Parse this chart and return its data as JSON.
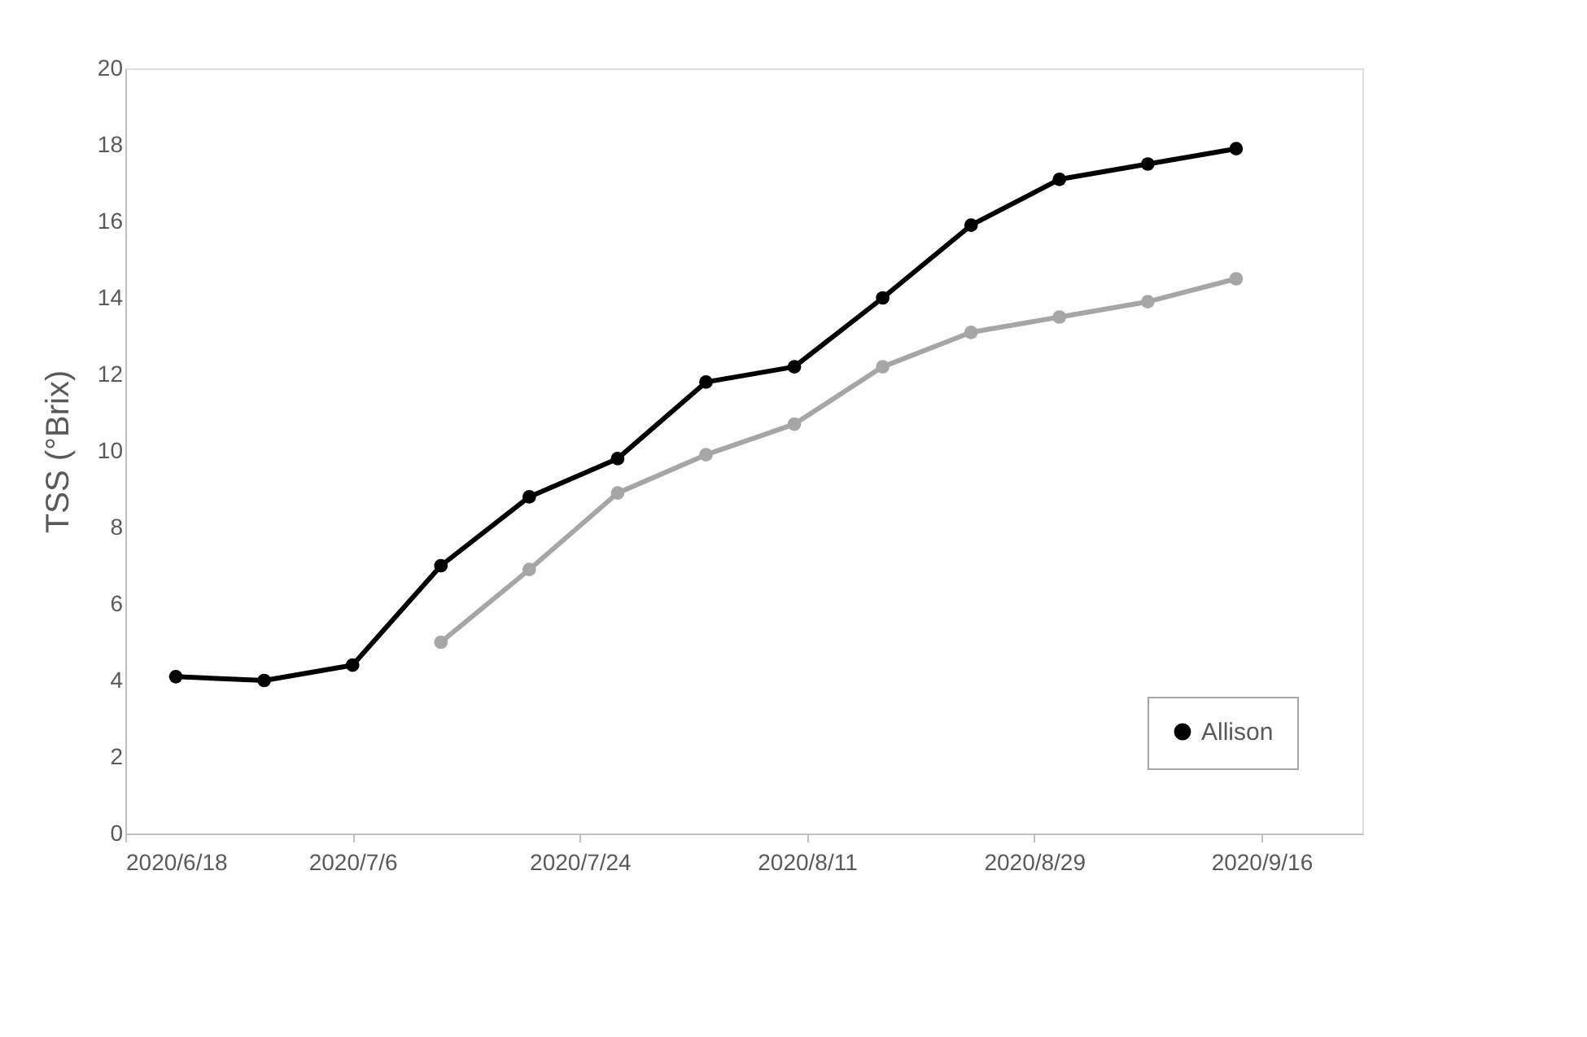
{
  "chart_data": {
    "type": "line",
    "ylabel": "TSS (°Brix)",
    "marker": "circle",
    "line_style": "solid",
    "grid": false,
    "legend": "bottom right",
    "xlim": [
      "2020-06-18",
      "2020-09-24"
    ],
    "xticks": [
      {
        "value": "2020-06-18",
        "label": "2020/6/18"
      },
      {
        "value": "2020-07-06",
        "label": "2020/7/6"
      },
      {
        "value": "2020-07-24",
        "label": "2020/7/24"
      },
      {
        "value": "2020-08-11",
        "label": "2020/8/11"
      },
      {
        "value": "2020-08-29",
        "label": "2020/8/29"
      },
      {
        "value": "2020-09-16",
        "label": "2020/9/16"
      }
    ],
    "ylim": [
      0,
      20
    ],
    "yticks": [
      0,
      2,
      4,
      6,
      8,
      10,
      12,
      14,
      16,
      18,
      20
    ],
    "series": [
      {
        "name": "Allison",
        "color": "#000000",
        "x": [
          "2020-06-22",
          "2020-06-29",
          "2020-07-06",
          "2020-07-13",
          "2020-07-20",
          "2020-07-27",
          "2020-08-03",
          "2020-08-10",
          "2020-08-17",
          "2020-08-24",
          "2020-08-31",
          "2020-09-07",
          "2020-09-14"
        ],
        "values": [
          4.1,
          4.0,
          4.4,
          7.0,
          8.8,
          9.8,
          11.8,
          12.2,
          14.0,
          15.9,
          17.1,
          17.5,
          17.9
        ]
      },
      {
        "color": "#a6a6a6",
        "x": [
          "2020-07-13",
          "2020-07-20",
          "2020-07-27",
          "2020-08-03",
          "2020-08-10",
          "2020-08-17",
          "2020-08-24",
          "2020-08-31",
          "2020-09-07",
          "2020-09-14"
        ],
        "values": [
          5.0,
          6.9,
          8.9,
          9.9,
          10.7,
          12.2,
          13.1,
          13.5,
          13.9,
          14.5
        ]
      }
    ]
  }
}
